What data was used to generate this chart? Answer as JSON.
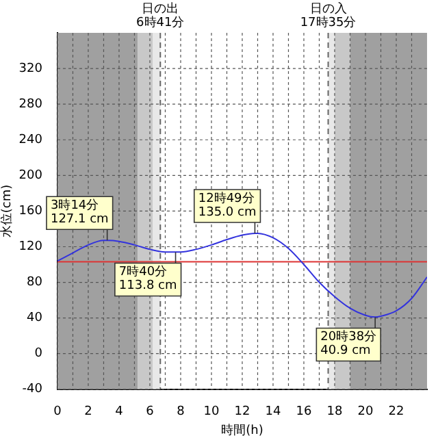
{
  "chart_data": {
    "type": "line",
    "xlabel": "時間(h)",
    "ylabel": "水位(cm)",
    "xlim": [
      0,
      24
    ],
    "ylim": [
      -40,
      360
    ],
    "xticks": [
      0,
      {
        "value": 1,
        "label": null
      },
      2,
      {
        "value": 3,
        "label": null
      },
      4,
      {
        "value": 5,
        "label": null
      },
      6,
      {
        "value": 7,
        "label": null
      },
      8,
      {
        "value": 9,
        "label": null
      },
      10,
      {
        "value": 11,
        "label": null
      },
      12,
      {
        "value": 13,
        "label": null
      },
      14,
      {
        "value": 15,
        "label": null
      },
      16,
      {
        "value": 17,
        "label": null
      },
      18,
      {
        "value": 19,
        "label": null
      },
      20,
      {
        "value": 21,
        "label": null
      },
      22,
      {
        "value": 23,
        "label": null
      }
    ],
    "yticks": [
      -40,
      0,
      40,
      80,
      120,
      160,
      200,
      240,
      280,
      320
    ],
    "grid": true,
    "legend": false,
    "marker": "none",
    "line_style": "solid",
    "series": [
      {
        "color": "#3333dd",
        "x": [
          0,
          1,
          2,
          3,
          3.23,
          4,
          5,
          6,
          7,
          7.67,
          8,
          9,
          10,
          11,
          12,
          12.82,
          13,
          14,
          15,
          16,
          17,
          18,
          19,
          20,
          20.63,
          21,
          22,
          23,
          24
        ],
        "values": [
          104,
          113,
          122,
          127,
          127,
          126,
          122,
          117,
          114,
          114,
          114,
          117,
          122,
          128,
          133,
          135,
          135,
          130,
          118,
          100,
          80,
          64,
          51,
          43,
          41,
          42,
          48,
          62,
          86
        ]
      }
    ],
    "bands": [
      {
        "axis": "x",
        "from": 0,
        "to": 5.2,
        "color": "#a0a0a0"
      },
      {
        "axis": "x",
        "from": 5.2,
        "to": 6.2,
        "color": "#c8c8c8"
      },
      {
        "axis": "x",
        "from": 6.2,
        "to": 6.7,
        "color": "#e8e8e8"
      },
      {
        "axis": "x",
        "from": 17.6,
        "to": 18,
        "color": "#e8e8e8"
      },
      {
        "axis": "x",
        "from": 18,
        "to": 19,
        "color": "#c8c8c8"
      },
      {
        "axis": "x",
        "from": 19,
        "to": 24,
        "color": "#a0a0a0"
      }
    ],
    "ref_lines": [
      {
        "axis": "y",
        "value": 103,
        "color": "#dd3333",
        "line_style": "solid"
      },
      {
        "axis": "x",
        "value": 6.68,
        "label": "日の出\n6時41分",
        "color": "#666666",
        "line_style": "dashed"
      },
      {
        "axis": "x",
        "value": 17.58,
        "label": "日の入\n17時35分",
        "color": "#666666",
        "line_style": "dashed"
      }
    ],
    "annotations": [
      {
        "text": "3時14分\n127.1 cm",
        "x": 3.23,
        "y": 127.1
      },
      {
        "text": "7時40分\n113.8 cm",
        "x": 7.67,
        "y": 113.8
      },
      {
        "text": "12時49分\n135.0 cm",
        "x": 12.82,
        "y": 135.0
      },
      {
        "text": "20時38分\n40.9 cm",
        "x": 20.63,
        "y": 40.9
      }
    ]
  }
}
